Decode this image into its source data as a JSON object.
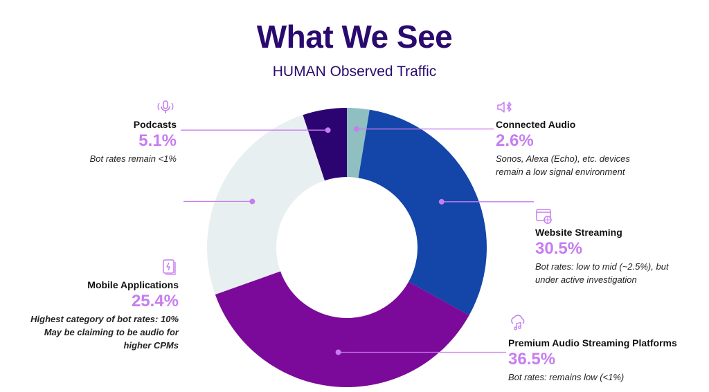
{
  "header": {
    "title": "What We See",
    "subtitle": "HUMAN Observed Traffic"
  },
  "chart_data": {
    "type": "pie",
    "style": "donut",
    "title": "What We See",
    "subtitle": "HUMAN Observed Traffic",
    "categories": [
      "Connected Audio",
      "Website Streaming",
      "Premium Audio Streaming Platforms",
      "Mobile Applications",
      "Podcasts"
    ],
    "values": [
      2.6,
      30.5,
      36.5,
      25.4,
      5.1
    ],
    "value_labels": [
      "2.6%",
      "30.5%",
      "36.5%",
      "25.4%",
      "5.1%"
    ],
    "colors": [
      "#8fbfc0",
      "#1346a8",
      "#7b0a9a",
      "#e8eff1",
      "#2c0472"
    ],
    "annotations": {
      "Connected Audio": [
        "Sonos, Alexa (Echo), etc. devices",
        "remain a low signal environment"
      ],
      "Website Streaming": [
        "Bot rates: low to mid (~2.5%), but",
        "under active investigation"
      ],
      "Premium Audio Streaming Platforms": [
        "Bot rates: remains low (<1%)"
      ],
      "Mobile Applications": [
        "Highest category of bot rates: 10%",
        "May be claiming to be audio for",
        "higher CPMs"
      ],
      "Podcasts": [
        "Bot rates remain <1%"
      ]
    }
  },
  "colors": {
    "title": "#2a0a6e",
    "accent": "#c77df0",
    "leader": "#c77df0"
  },
  "icons": {
    "podcasts": "microphone-icon",
    "connected_audio": "speaker-bluetooth-icon",
    "website_streaming": "browser-globe-icon",
    "mobile_applications": "mobile-app-icon",
    "premium_audio": "cloud-music-icon"
  }
}
